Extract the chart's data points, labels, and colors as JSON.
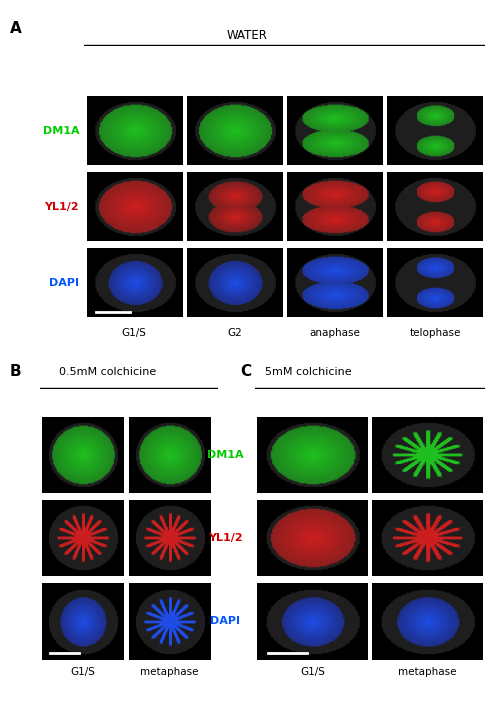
{
  "fig_width": 4.95,
  "fig_height": 7.13,
  "dpi": 100,
  "background_color": "#ffffff",
  "panel_A_label": "A",
  "panel_B_label": "B",
  "panel_C_label": "C",
  "panel_A_title": "WATER",
  "panel_B_title": "0.5mM colchicine",
  "panel_C_title": "5mM colchicine",
  "row_labels_A": [
    "DM1A",
    "YL1/2",
    "DAPI"
  ],
  "row_labels_BC": [
    "DM1A",
    "YL1/2",
    "DAPI"
  ],
  "row_label_colors": [
    "#00cc00",
    "#cc0000",
    "#0055ff"
  ],
  "col_labels_A": [
    "G1/S",
    "G2",
    "anaphase",
    "telophase"
  ],
  "col_labels_B": [
    "G1/S",
    "metaphase"
  ],
  "col_labels_C": [
    "G1/S",
    "metaphase"
  ],
  "scale_bar_color": "#ffffff",
  "text_color": "#000000",
  "title_fontsize": 8.5,
  "label_fontsize": 8,
  "panel_letter_fontsize": 11
}
